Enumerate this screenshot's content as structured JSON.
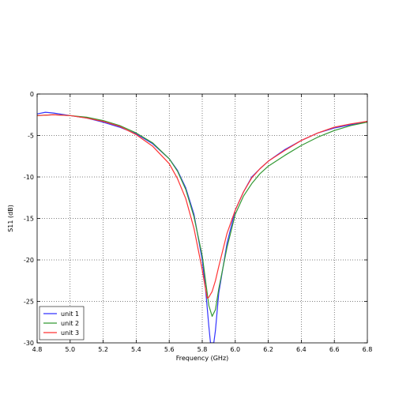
{
  "chart_data": {
    "type": "line",
    "xlabel": "Frequency (GHz)",
    "ylabel": "S11 (dB)",
    "xlim": [
      4.8,
      6.8
    ],
    "ylim": [
      -30,
      0
    ],
    "xticks": [
      "4.8",
      "5.0",
      "5.2",
      "5.4",
      "5.6",
      "5.8",
      "6.0",
      "6.2",
      "6.4",
      "6.6",
      "6.8"
    ],
    "yticks": [
      "0",
      "-5",
      "-10",
      "-15",
      "-20",
      "-25",
      "-30"
    ],
    "xtick_values": [
      4.8,
      5.0,
      5.2,
      5.4,
      5.6,
      5.8,
      6.0,
      6.2,
      6.4,
      6.6,
      6.8
    ],
    "ytick_values": [
      0,
      -5,
      -10,
      -15,
      -20,
      -25,
      -30
    ],
    "grid": true,
    "grid_style": "dotted",
    "legend_position": "lower-left",
    "series": [
      {
        "name": "unit 1",
        "color": "#3333ff",
        "x": [
          4.8,
          4.85,
          4.9,
          5.0,
          5.1,
          5.2,
          5.3,
          5.4,
          5.5,
          5.6,
          5.65,
          5.7,
          5.75,
          5.8,
          5.82,
          5.84,
          5.85,
          5.86,
          5.87,
          5.88,
          5.9,
          5.95,
          6.0,
          6.05,
          6.1,
          6.15,
          6.2,
          6.3,
          6.4,
          6.5,
          6.6,
          6.7,
          6.8
        ],
        "y": [
          -2.4,
          -2.2,
          -2.3,
          -2.6,
          -2.9,
          -3.4,
          -4.0,
          -4.8,
          -6.0,
          -7.8,
          -9.2,
          -11.3,
          -14.5,
          -20.0,
          -23.5,
          -28.0,
          -30.0,
          -30.0,
          -30.0,
          -28.5,
          -24.0,
          -18.0,
          -14.0,
          -11.8,
          -10.0,
          -9.0,
          -8.1,
          -6.7,
          -5.6,
          -4.7,
          -4.1,
          -3.7,
          -3.3
        ]
      },
      {
        "name": "unit 2",
        "color": "#339933",
        "x": [
          4.8,
          4.9,
          5.0,
          5.1,
          5.2,
          5.3,
          5.4,
          5.5,
          5.6,
          5.65,
          5.7,
          5.75,
          5.8,
          5.82,
          5.84,
          5.86,
          5.88,
          5.9,
          5.95,
          6.0,
          6.05,
          6.1,
          6.15,
          6.2,
          6.3,
          6.4,
          6.5,
          6.6,
          6.7,
          6.8
        ],
        "y": [
          -2.6,
          -2.5,
          -2.6,
          -2.8,
          -3.2,
          -3.8,
          -4.7,
          -5.9,
          -7.8,
          -9.3,
          -11.5,
          -14.8,
          -19.5,
          -22.5,
          -25.5,
          -26.8,
          -26.0,
          -23.5,
          -18.5,
          -14.5,
          -12.3,
          -10.8,
          -9.6,
          -8.7,
          -7.4,
          -6.2,
          -5.2,
          -4.4,
          -3.8,
          -3.4
        ]
      },
      {
        "name": "unit 3",
        "color": "#ff3333",
        "x": [
          4.8,
          4.9,
          5.0,
          5.1,
          5.2,
          5.3,
          5.4,
          5.5,
          5.6,
          5.65,
          5.7,
          5.75,
          5.8,
          5.82,
          5.83,
          5.84,
          5.86,
          5.88,
          5.9,
          5.95,
          6.0,
          6.05,
          6.1,
          6.15,
          6.2,
          6.3,
          6.4,
          6.5,
          6.6,
          6.7,
          6.8
        ],
        "y": [
          -2.6,
          -2.5,
          -2.6,
          -2.9,
          -3.3,
          -3.9,
          -4.9,
          -6.3,
          -8.4,
          -10.2,
          -12.6,
          -16.2,
          -21.2,
          -23.5,
          -24.6,
          -24.5,
          -23.8,
          -22.5,
          -20.8,
          -16.8,
          -14.0,
          -11.8,
          -10.1,
          -9.0,
          -8.1,
          -6.8,
          -5.6,
          -4.7,
          -4.0,
          -3.6,
          -3.3
        ]
      }
    ]
  }
}
